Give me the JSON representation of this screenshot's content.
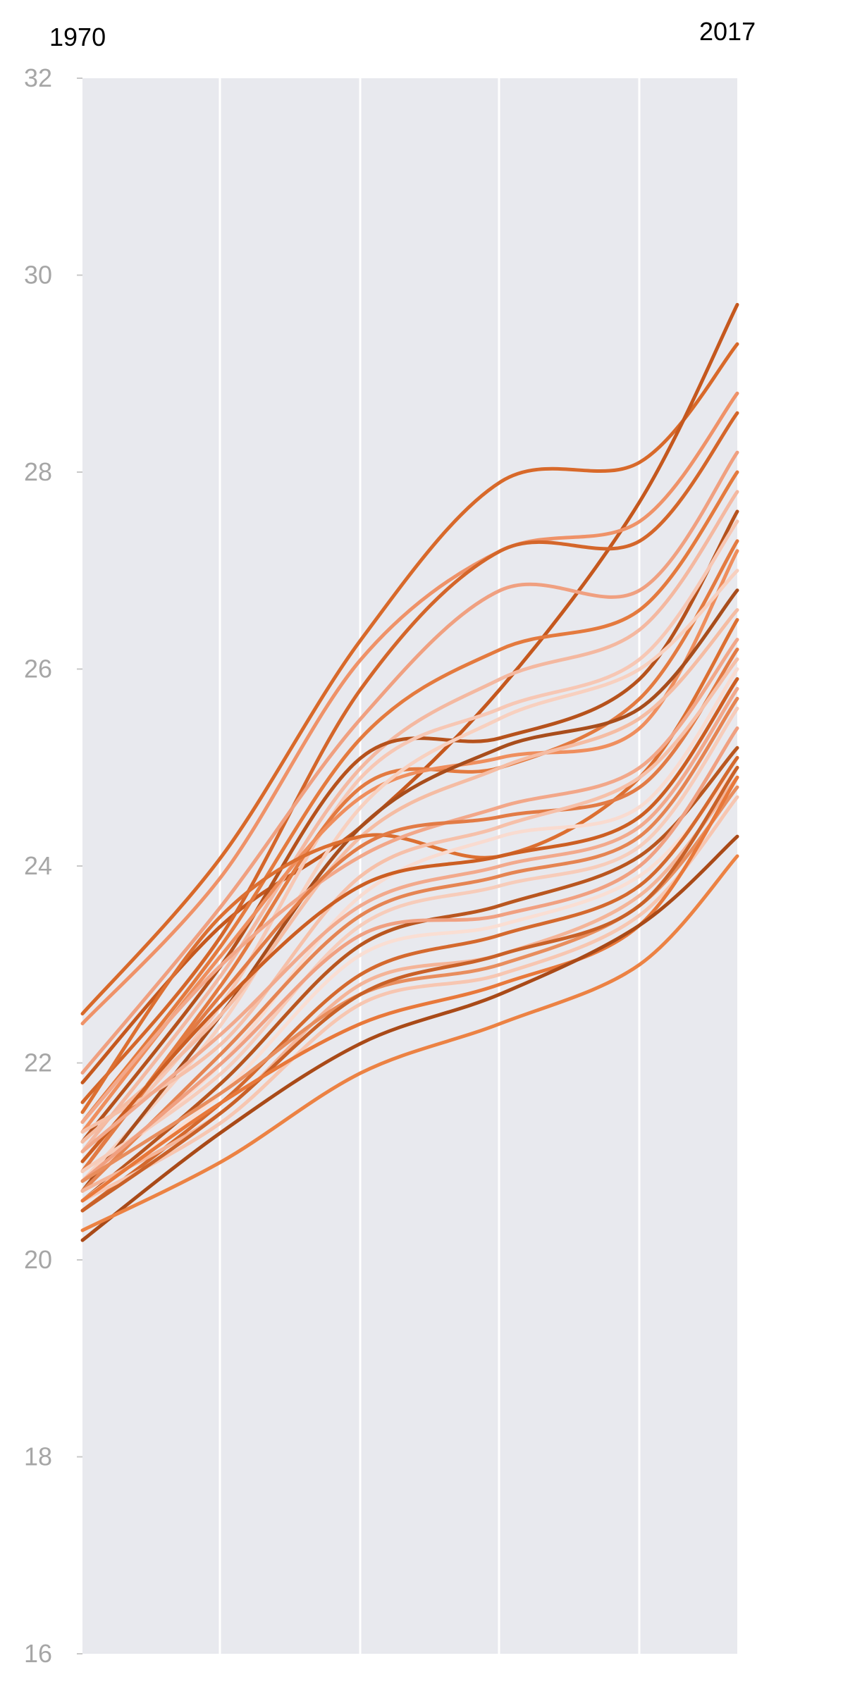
{
  "chart_data": {
    "type": "line",
    "x_start_label": "1970",
    "x_end_label": "2017",
    "x": [
      1970,
      1980,
      1990,
      2000,
      2010,
      2017
    ],
    "ylim": [
      16,
      32
    ],
    "yticks": [
      "16",
      "18",
      "20",
      "22",
      "24",
      "26",
      "28",
      "30",
      "32"
    ],
    "grid": true,
    "legend": "none",
    "background": "#e8e9ee",
    "series": [
      {
        "color": "#d8692a",
        "values": [
          22.5,
          24.1,
          26.3,
          27.9,
          28.1,
          29.3
        ]
      },
      {
        "color": "#c5581e",
        "values": [
          21.8,
          23.4,
          24.4,
          25.8,
          27.7,
          29.7
        ]
      },
      {
        "color": "#ef9268",
        "values": [
          22.4,
          23.9,
          26.1,
          27.2,
          27.5,
          28.8
        ]
      },
      {
        "color": "#d4662a",
        "values": [
          21.6,
          23.3,
          25.8,
          27.2,
          27.3,
          28.6
        ]
      },
      {
        "color": "#f0a080",
        "values": [
          21.9,
          23.6,
          25.5,
          26.8,
          26.8,
          28.2
        ]
      },
      {
        "color": "#e47a3e",
        "values": [
          21.4,
          23.2,
          25.3,
          26.2,
          26.6,
          28.0
        ]
      },
      {
        "color": "#f4b8a0",
        "values": [
          21.1,
          22.9,
          25.0,
          25.9,
          26.4,
          27.8
        ]
      },
      {
        "color": "#b6521c",
        "values": [
          21.2,
          23.0,
          25.1,
          25.3,
          25.9,
          27.6
        ]
      },
      {
        "color": "#f7c7b4",
        "values": [
          21.0,
          22.6,
          24.9,
          25.6,
          26.1,
          27.5
        ]
      },
      {
        "color": "#e37a40",
        "values": [
          20.9,
          22.8,
          24.8,
          25.0,
          25.7,
          27.3
        ]
      },
      {
        "color": "#ef8e5d",
        "values": [
          21.3,
          23.1,
          24.7,
          25.1,
          25.4,
          27.2
        ]
      },
      {
        "color": "#f8d0bf",
        "values": [
          20.8,
          22.4,
          24.6,
          25.5,
          26.0,
          27.0
        ]
      },
      {
        "color": "#a84d1c",
        "values": [
          20.7,
          22.5,
          24.4,
          25.2,
          25.6,
          26.8
        ]
      },
      {
        "color": "#f5bca3",
        "values": [
          21.2,
          22.5,
          24.3,
          25.0,
          25.5,
          26.6
        ]
      },
      {
        "color": "#dc6f31",
        "values": [
          21.5,
          23.5,
          24.3,
          24.1,
          24.9,
          26.5
        ]
      },
      {
        "color": "#f2a789",
        "values": [
          21.4,
          23.0,
          24.1,
          24.6,
          25.0,
          26.3
        ]
      },
      {
        "color": "#e27b45",
        "values": [
          20.9,
          22.7,
          24.2,
          24.5,
          24.8,
          26.2
        ]
      },
      {
        "color": "#f6c0a9",
        "values": [
          21.3,
          22.2,
          23.9,
          24.4,
          24.9,
          26.1
        ]
      },
      {
        "color": "#f9dbd0",
        "values": [
          20.8,
          22.0,
          23.7,
          24.3,
          24.6,
          26.0
        ]
      },
      {
        "color": "#cc5e22",
        "values": [
          21.0,
          22.6,
          23.8,
          24.1,
          24.5,
          25.9
        ]
      },
      {
        "color": "#f2a98c",
        "values": [
          21.1,
          22.3,
          23.6,
          24.0,
          24.4,
          25.8
        ]
      },
      {
        "color": "#e58452",
        "values": [
          20.7,
          22.1,
          23.5,
          23.9,
          24.3,
          25.7
        ]
      },
      {
        "color": "#f7ccba",
        "values": [
          20.9,
          21.9,
          23.4,
          23.8,
          24.2,
          25.6
        ]
      },
      {
        "color": "#b9561f",
        "values": [
          20.6,
          21.8,
          23.2,
          23.6,
          24.1,
          25.2
        ]
      },
      {
        "color": "#f0a081",
        "values": [
          20.8,
          22.0,
          23.3,
          23.5,
          24.0,
          25.4
        ]
      },
      {
        "color": "#faded3",
        "values": [
          20.6,
          21.7,
          23.1,
          23.4,
          23.9,
          25.0
        ]
      },
      {
        "color": "#d4692e",
        "values": [
          20.5,
          21.6,
          22.9,
          23.3,
          23.8,
          25.1
        ]
      },
      {
        "color": "#f4b498",
        "values": [
          20.7,
          21.5,
          22.8,
          23.1,
          23.7,
          24.9
        ]
      },
      {
        "color": "#e88d5d",
        "values": [
          20.8,
          21.7,
          22.7,
          23.0,
          23.6,
          24.8
        ]
      },
      {
        "color": "#f7c6b1",
        "values": [
          20.6,
          21.4,
          22.6,
          22.9,
          23.5,
          24.7
        ]
      },
      {
        "color": "#c96128",
        "values": [
          20.5,
          21.5,
          22.7,
          23.1,
          23.6,
          25.0
        ]
      },
      {
        "color": "#e8783a",
        "values": [
          20.6,
          21.6,
          22.4,
          22.8,
          23.4,
          24.9
        ]
      },
      {
        "color": "#a94a18",
        "values": [
          20.2,
          21.3,
          22.2,
          22.7,
          23.4,
          24.3
        ]
      },
      {
        "color": "#ec8243",
        "values": [
          20.3,
          21.0,
          21.9,
          22.4,
          23.0,
          24.1
        ]
      }
    ]
  }
}
